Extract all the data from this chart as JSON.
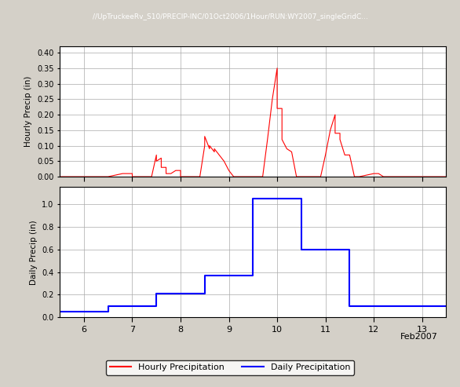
{
  "title": "//UpTruckeeRv_S10/PRECIP-INC/01Oct2006/1Hour/RUN:WY2007_singleGridC...",
  "hourly_ylabel": "Hourly Precip (in)",
  "daily_ylabel": "Daily Precip (in)",
  "xlabel": "Feb2007",
  "xlim": [
    5.5,
    13.5
  ],
  "xticks": [
    6,
    7,
    8,
    9,
    10,
    11,
    12,
    13
  ],
  "hourly_ylim": [
    0.0,
    0.42
  ],
  "hourly_yticks": [
    0.0,
    0.05,
    0.1,
    0.15,
    0.2,
    0.25,
    0.3,
    0.35,
    0.4
  ],
  "daily_ylim": [
    0.0,
    1.15
  ],
  "daily_yticks": [
    0.0,
    0.2,
    0.4,
    0.6,
    0.8,
    1.0
  ],
  "hourly_color": "#FF0000",
  "daily_color": "#0000FF",
  "bg_color": "#FFFFFF",
  "grid_color": "#AAAAAA",
  "legend_hourly": "Hourly Precipitation",
  "legend_daily": "Daily Precipitation",
  "hourly_x": [
    5.5,
    6.0,
    6.2,
    6.5,
    6.8,
    7.0,
    7.0,
    7.1,
    7.1,
    7.2,
    7.2,
    7.3,
    7.3,
    7.4,
    7.4,
    7.5,
    7.5,
    7.6,
    7.6,
    7.7,
    7.7,
    7.8,
    7.8,
    7.9,
    7.9,
    8.0,
    8.0,
    8.1,
    8.1,
    8.2,
    8.2,
    8.3,
    8.3,
    8.4,
    8.4,
    8.5,
    8.5,
    8.6,
    8.6,
    8.7,
    8.7,
    8.8,
    8.8,
    8.9,
    8.9,
    9.0,
    9.0,
    9.1,
    9.1,
    9.2,
    9.2,
    9.3,
    9.3,
    9.4,
    9.4,
    9.5,
    9.5,
    9.6,
    9.6,
    9.7,
    9.7,
    9.8,
    9.8,
    9.9,
    9.9,
    10.0,
    10.0,
    10.1,
    10.1,
    10.2,
    10.2,
    10.3,
    10.3,
    10.4,
    10.4,
    10.5,
    10.5,
    10.6,
    10.6,
    10.7,
    10.7,
    10.8,
    10.8,
    10.9,
    10.9,
    11.0,
    11.0,
    11.1,
    11.1,
    11.2,
    11.2,
    11.3,
    11.3,
    11.4,
    11.4,
    11.5,
    11.5,
    11.6,
    11.6,
    11.7,
    11.7,
    12.0,
    12.1,
    12.2,
    12.3,
    12.5,
    12.6,
    13.0,
    13.5
  ],
  "hourly_y": [
    0.0,
    0.0,
    0.0,
    0.0,
    0.01,
    0.01,
    0.0,
    0.0,
    0.0,
    0.0,
    0.0,
    0.0,
    0.0,
    0.0,
    0.0,
    0.07,
    0.05,
    0.06,
    0.03,
    0.03,
    0.01,
    0.01,
    0.01,
    0.02,
    0.02,
    0.02,
    0.0,
    0.0,
    0.0,
    0.0,
    0.0,
    0.0,
    0.0,
    0.0,
    0.0,
    0.1,
    0.13,
    0.09,
    0.1,
    0.08,
    0.09,
    0.07,
    0.07,
    0.05,
    0.05,
    0.02,
    0.02,
    0.0,
    0.0,
    0.0,
    0.0,
    0.0,
    0.0,
    0.0,
    0.0,
    0.0,
    0.0,
    0.0,
    0.0,
    0.0,
    0.0,
    0.12,
    0.12,
    0.25,
    0.25,
    0.35,
    0.22,
    0.22,
    0.12,
    0.09,
    0.09,
    0.08,
    0.08,
    0.0,
    0.0,
    0.0,
    0.0,
    0.0,
    0.0,
    0.0,
    0.0,
    0.0,
    0.0,
    0.0,
    0.0,
    0.07,
    0.07,
    0.15,
    0.15,
    0.2,
    0.14,
    0.14,
    0.12,
    0.07,
    0.07,
    0.07,
    0.07,
    0.0,
    0.0,
    0.0,
    0.0,
    0.01,
    0.01,
    0.0,
    0.0,
    0.0,
    0.0,
    0.0,
    0.0
  ],
  "daily_x": [
    5.5,
    5.5,
    6.5,
    6.5,
    7.5,
    7.5,
    8.5,
    8.5,
    9.5,
    9.5,
    10.5,
    10.5,
    11.5,
    11.5,
    12.5,
    12.5,
    13.5
  ],
  "daily_y": [
    0.05,
    0.05,
    0.05,
    0.1,
    0.1,
    0.21,
    0.21,
    0.37,
    0.37,
    1.05,
    1.05,
    0.6,
    0.6,
    0.1,
    0.1,
    0.1,
    0.1
  ]
}
